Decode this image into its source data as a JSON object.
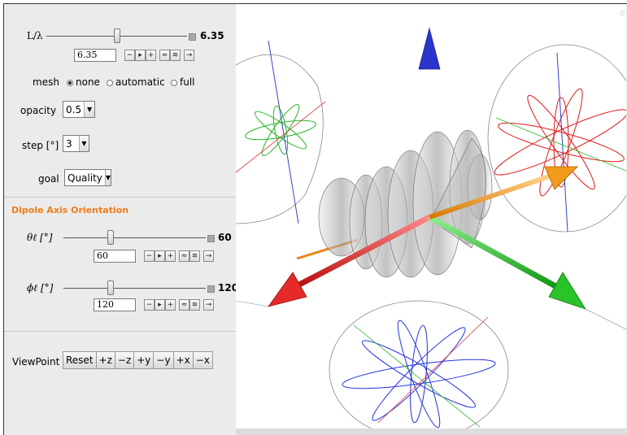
{
  "controls": {
    "length": {
      "label": "L/λ",
      "value": "6.35",
      "field_value": "6.35",
      "position": 0.5
    },
    "mesh": {
      "label": "mesh",
      "options": [
        "none",
        "automatic",
        "full"
      ],
      "selected": "none"
    },
    "opacity": {
      "label": "opacity",
      "value": "0.5"
    },
    "step": {
      "label": "step [°]",
      "value": "3"
    },
    "goal": {
      "label": "goal",
      "value": "Quality"
    }
  },
  "dipole": {
    "section_title": "Dipole Axis Orientation",
    "theta": {
      "label": "θℓ [°]",
      "value": "60",
      "field_value": "60",
      "position": 0.33
    },
    "phi": {
      "label": "ϕℓ [°]",
      "value": "120",
      "field_value": "120",
      "position": 0.33
    }
  },
  "viewpoint": {
    "label": "ViewPoint",
    "buttons": [
      "Reset",
      "+z",
      "−z",
      "+y",
      "−y",
      "+x",
      "−x"
    ]
  },
  "colors": {
    "section_title": "#ef7d1a",
    "axis_z": "#2233cc",
    "axis_x": "#dd2222",
    "axis_y": "#22bb22",
    "dipole_axis": "#f29a1a"
  }
}
